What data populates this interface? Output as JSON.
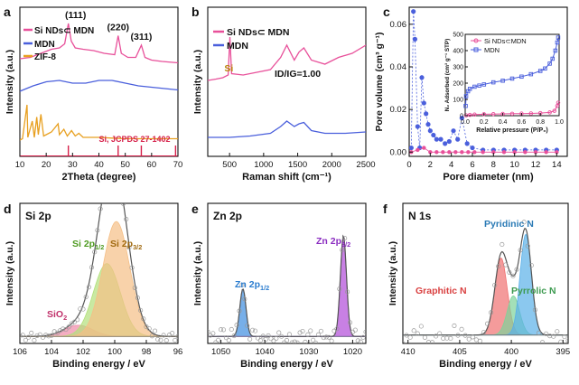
{
  "chart_data": [
    {
      "type": "line",
      "panel": "a",
      "xlabel": "2Theta (degree)",
      "ylabel": "Intensity (a.u.)",
      "xlim": [
        10,
        70
      ],
      "xticks": [
        10,
        20,
        30,
        40,
        50,
        60,
        70
      ],
      "series": [
        {
          "name": "Si NDs⊂ MDN",
          "color": "#e8509a",
          "x": [
            10,
            14,
            18,
            22,
            25,
            27,
            28.4,
            29.5,
            31,
            34,
            38,
            42,
            46,
            47.3,
            48.5,
            51,
            54,
            56.1,
            57.5,
            60,
            64,
            70
          ],
          "y": [
            7.2,
            7.3,
            7.6,
            7.9,
            8.0,
            8.3,
            9.8,
            8.5,
            8.0,
            7.9,
            7.8,
            7.6,
            7.5,
            8.9,
            7.6,
            7.3,
            7.3,
            8.2,
            7.3,
            7.1,
            7.0,
            6.9
          ]
        },
        {
          "name": "MDN",
          "color": "#4a5fdc",
          "x": [
            10,
            15,
            20,
            25,
            30,
            35,
            40,
            45,
            50,
            55,
            60,
            65,
            70
          ],
          "y": [
            4.8,
            5.2,
            5.5,
            5.6,
            5.4,
            5.4,
            5.6,
            5.6,
            5.4,
            5.2,
            5.1,
            5.0,
            4.9
          ]
        },
        {
          "name": "ZIF-8",
          "color": "#e8a020",
          "x": [
            10,
            11,
            12.7,
            13,
            14.7,
            15.5,
            16.4,
            17,
            18,
            19,
            20,
            22,
            24.5,
            25,
            26.7,
            28,
            29.6,
            31,
            32.4,
            34,
            36,
            40,
            45,
            50,
            55,
            60,
            65,
            70
          ],
          "y": [
            1.2,
            1.3,
            3.8,
            1.4,
            2.6,
            1.4,
            2.9,
            1.6,
            3.1,
            1.5,
            1.6,
            1.8,
            2.4,
            1.6,
            2.0,
            1.5,
            1.9,
            1.5,
            1.7,
            1.4,
            1.4,
            1.4,
            1.35,
            1.3,
            1.3,
            1.3,
            1.3,
            1.3
          ]
        }
      ],
      "reference": {
        "label": "Si, JCPDS 27-1402",
        "color": "#d6204a",
        "positions": [
          28.4,
          47.3,
          56.1,
          69.1
        ]
      },
      "annotations": [
        "(111)",
        "(220)",
        "(311)"
      ]
    },
    {
      "type": "line",
      "panel": "b",
      "xlabel": "Raman shift (cm⁻¹)",
      "ylabel": "Intensity (a.u.)",
      "xlim": [
        180,
        2500
      ],
      "xticks": [
        500,
        1000,
        1500,
        2000,
        2500
      ],
      "series": [
        {
          "name": "Si NDs⊂ MDN",
          "color": "#e8509a",
          "x": [
            180,
            300,
            400,
            480,
            505,
            530,
            700,
            900,
            1100,
            1250,
            1340,
            1450,
            1520,
            1590,
            1700,
            1900,
            2100,
            2300,
            2500
          ],
          "y": [
            5.6,
            5.7,
            5.8,
            6.0,
            8.8,
            6.1,
            6.0,
            6.2,
            6.4,
            7.3,
            8.2,
            7.1,
            7.7,
            8.0,
            7.1,
            6.8,
            7.3,
            7.6,
            8.2
          ]
        },
        {
          "name": "MDN",
          "color": "#4a5fdc",
          "x": [
            180,
            500,
            800,
            1100,
            1250,
            1340,
            1450,
            1520,
            1590,
            1700,
            1900,
            2200,
            2500
          ],
          "y": [
            1.4,
            1.4,
            1.5,
            1.7,
            2.2,
            2.6,
            2.2,
            2.4,
            2.5,
            1.9,
            1.7,
            1.7,
            1.8
          ]
        }
      ],
      "annotations": [
        "Si",
        "ID/IG=1.00"
      ]
    },
    {
      "type": "scatter",
      "panel": "c",
      "xlabel": "Pore diameter (nm)",
      "ylabel": "Pore volume (cm³ g⁻¹)",
      "xlim": [
        0,
        15
      ],
      "ylim": [
        -0.002,
        0.068
      ],
      "xticks": [
        0,
        2,
        4,
        6,
        8,
        10,
        12,
        14
      ],
      "yticks": [
        0.0,
        0.02,
        0.04,
        0.06
      ],
      "series": [
        {
          "name": "MDN",
          "color": "#4a5fdc",
          "x": [
            0.2,
            0.4,
            0.55,
            0.8,
            1.0,
            1.2,
            1.4,
            1.6,
            1.8,
            2.0,
            2.3,
            2.6,
            3.0,
            3.4,
            3.8,
            4.2,
            4.6,
            5.0,
            5.5,
            6.0,
            7.0,
            8.0,
            9.0,
            10.0,
            11.0,
            12.0,
            13.0,
            14.0
          ],
          "y": [
            0.002,
            0.066,
            0.053,
            0.012,
            0.002,
            0.035,
            0.023,
            0.018,
            0.013,
            0.01,
            0.008,
            0.006,
            0.006,
            0.004,
            0.005,
            0.01,
            0.006,
            0.016,
            0.004,
            0.002,
            0.001,
            0.001,
            0.001,
            0.001,
            0.001,
            0.001,
            0.001,
            0.001
          ]
        },
        {
          "name": "Si NDs⊂MDN",
          "color": "#e8509a",
          "x": [
            0.2,
            0.8,
            1.4,
            2.0,
            2.6,
            3.2,
            3.8,
            4.4,
            5.0,
            5.6,
            6.2,
            7.0,
            8.0,
            9.0,
            10.0,
            11.0,
            12.0,
            13.0,
            14.0
          ],
          "y": [
            0.0,
            0.001,
            0.002,
            0.0,
            0.0,
            0.0,
            0.0,
            0.0,
            0.0,
            0.0,
            0.0,
            0.0,
            0.0,
            0.0,
            0.0,
            0.0,
            0.0,
            0.0,
            0.0
          ]
        }
      ],
      "inset": {
        "xlabel": "Relative pressure (P/P₀)",
        "ylabel": "N₂ Adsorbed (cm³ g⁻¹ STP)",
        "xlim": [
          0,
          1.0
        ],
        "ylim": [
          0,
          500
        ],
        "xticks": [
          0.0,
          0.2,
          0.4,
          0.6,
          0.8,
          1.0
        ],
        "yticks": [
          0,
          100,
          200,
          300,
          400,
          500
        ],
        "series": [
          {
            "name": "Si NDs⊂MDN",
            "color": "#e8509a",
            "x": [
              0.01,
              0.05,
              0.1,
              0.2,
              0.3,
              0.4,
              0.5,
              0.6,
              0.7,
              0.8,
              0.9,
              0.95,
              0.98,
              0.99
            ],
            "y": [
              2,
              5,
              7,
              9,
              10,
              11,
              12,
              13,
              14,
              16,
              20,
              30,
              60,
              80
            ]
          },
          {
            "name": "MDN",
            "color": "#4a5fdc",
            "x": [
              0.005,
              0.01,
              0.03,
              0.05,
              0.1,
              0.15,
              0.2,
              0.3,
              0.4,
              0.5,
              0.6,
              0.7,
              0.8,
              0.85,
              0.9,
              0.93,
              0.96,
              0.98,
              0.99
            ],
            "y": [
              60,
              120,
              150,
              165,
              178,
              185,
              192,
              205,
              215,
              228,
              240,
              255,
              275,
              290,
              320,
              350,
              400,
              450,
              480
            ]
          }
        ]
      }
    },
    {
      "type": "line",
      "panel": "d",
      "title": "Si 2p",
      "xlabel": "Binding energy / eV",
      "ylabel": "Intensity (a.u.)",
      "xlim": [
        106,
        96
      ],
      "xticks": [
        106,
        104,
        102,
        100,
        98,
        96
      ],
      "peaks": [
        {
          "label": "SiO₂",
          "center": 102.3,
          "height": 0.08,
          "width": 0.9,
          "color": "#f08aa8"
        },
        {
          "label": "Si 2p1/2",
          "center": 100.5,
          "height": 0.52,
          "width": 0.85,
          "color": "#b2e07a"
        },
        {
          "label": "Si 2p3/2",
          "center": 99.9,
          "height": 0.82,
          "width": 0.85,
          "color": "#f5bf86"
        }
      ],
      "background": 0.05
    },
    {
      "type": "line",
      "panel": "e",
      "title": "Zn 2p",
      "xlabel": "Binding energy / eV",
      "ylabel": "Intensity (a.u.)",
      "xlim": [
        1053,
        1017
      ],
      "xticks": [
        1050,
        1040,
        1030,
        1020
      ],
      "peaks": [
        {
          "label": "Zn 2p1/2",
          "center": 1045.0,
          "height": 0.34,
          "width": 0.7,
          "color": "#3d8de0"
        },
        {
          "label": "Zn 2p3/2",
          "center": 1022.1,
          "height": 0.72,
          "width": 0.7,
          "color": "#b04ad8"
        }
      ],
      "background": 0.05
    },
    {
      "type": "line",
      "panel": "f",
      "title": "N 1s",
      "xlabel": "Binding energy / eV",
      "ylabel": "Intensity (a.u.)",
      "xlim": [
        410.5,
        394.5
      ],
      "xticks": [
        410,
        405,
        400,
        395
      ],
      "peaks": [
        {
          "label": "Graphitic N",
          "center": 401.0,
          "height": 0.55,
          "width": 0.6,
          "color": "#f07070"
        },
        {
          "label": "Pyrrolic N",
          "center": 399.8,
          "height": 0.28,
          "width": 0.6,
          "color": "#7dd39a"
        },
        {
          "label": "Pyridinic N",
          "center": 398.6,
          "height": 0.72,
          "width": 0.55,
          "color": "#5ab0e8"
        }
      ],
      "background": 0.06
    }
  ]
}
